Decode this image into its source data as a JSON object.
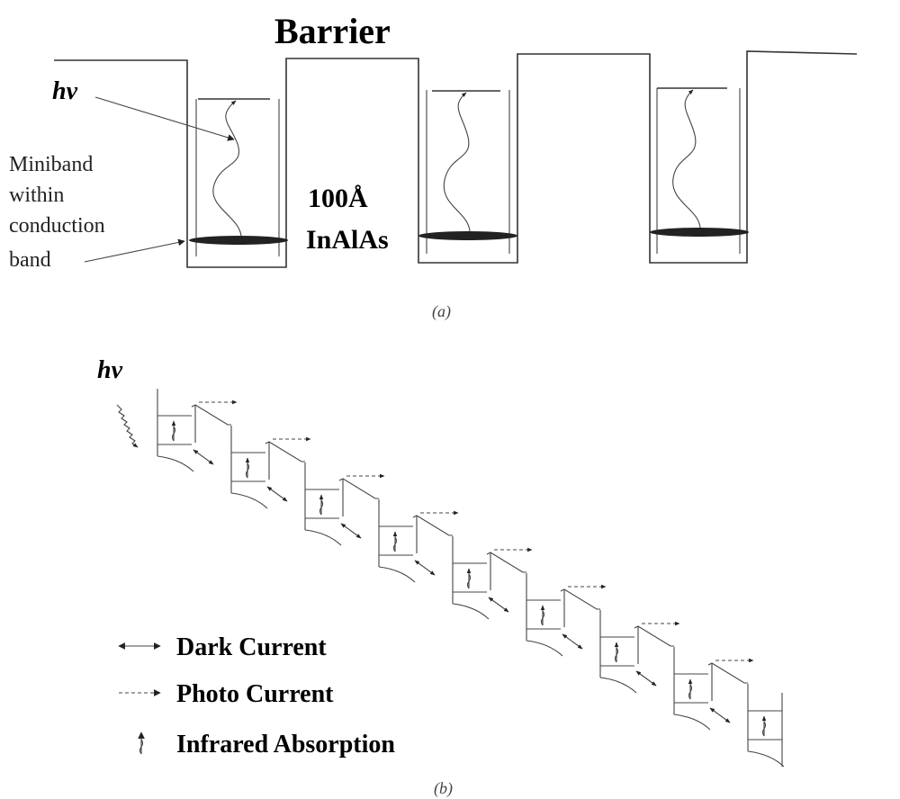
{
  "panel_a": {
    "title": "Barrier",
    "photon": "hv",
    "miniband_lines": [
      "Miniband",
      "within",
      "conduction",
      "band"
    ],
    "width_label": "100Å",
    "material_label": "InAlAs",
    "caption": "(a)"
  },
  "panel_b": {
    "photon": "hv",
    "caption": "(b)",
    "legend": [
      {
        "symbol": "double-arrow-icon",
        "label": "Dark Current"
      },
      {
        "symbol": "dashed-arrow-icon",
        "label": "Photo Current"
      },
      {
        "symbol": "up-arrow-icon",
        "label": "Infrared Absorption"
      }
    ]
  }
}
